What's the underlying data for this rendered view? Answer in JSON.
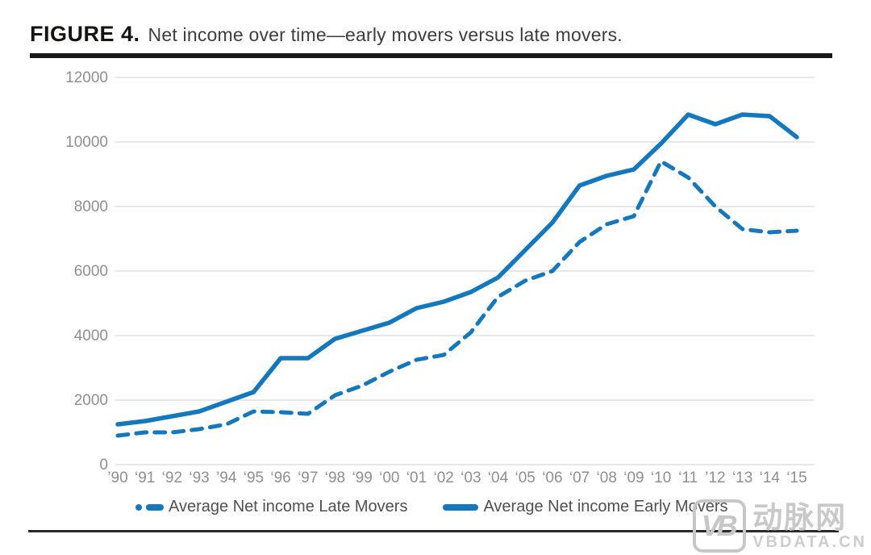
{
  "header": {
    "label": "FIGURE 4.",
    "caption": "Net income over time—early movers versus late movers."
  },
  "chart_data": {
    "type": "line",
    "title": "Net income over time—early movers versus late movers.",
    "xlabel": "",
    "ylabel": "",
    "ylim": [
      0,
      12000
    ],
    "yticks": [
      0,
      2000,
      4000,
      6000,
      8000,
      10000,
      12000
    ],
    "grid": "horizontal",
    "legend_position": "bottom",
    "categories": [
      "’90",
      "‘91",
      "‘92",
      "‘93",
      "’94",
      "‘95",
      "‘96",
      "‘97",
      "‘98",
      "‘99",
      "‘00",
      "‘01",
      "‘02",
      "‘03",
      "‘04",
      "‘05",
      "‘06",
      "‘07",
      "‘08",
      "‘09",
      "‘10",
      "‘11",
      "’12",
      "‘13",
      "‘14",
      "‘15"
    ],
    "series": [
      {
        "name": "Average Net income Late Movers",
        "style": "dashed",
        "values": [
          900,
          1000,
          1000,
          1100,
          1250,
          1650,
          1625,
          1575,
          2150,
          2450,
          2880,
          3250,
          3400,
          4100,
          5200,
          5700,
          6000,
          6900,
          7450,
          7700,
          9400,
          8900,
          8000,
          7300,
          7200,
          7250
        ]
      },
      {
        "name": "Average Net income Early Movers",
        "style": "solid",
        "values": [
          1250,
          1350,
          1500,
          1650,
          1950,
          2250,
          3300,
          3300,
          3900,
          4150,
          4400,
          4850,
          5050,
          5350,
          5800,
          6650,
          7500,
          8650,
          8950,
          9150,
          9950,
          10850,
          10550,
          10850,
          10800,
          10150
        ]
      }
    ]
  },
  "colors": {
    "line_blue": "#1478be",
    "grid_gray": "#d9d9d9",
    "axis_text": "#8f8f8f",
    "legend_text": "#4f4f4f",
    "rule_black": "#1b1918",
    "watermark_gray": "#c9c9c9"
  },
  "watermark": {
    "logo": "VB",
    "brand": "动脉网",
    "site": "VBDATA.CN"
  }
}
